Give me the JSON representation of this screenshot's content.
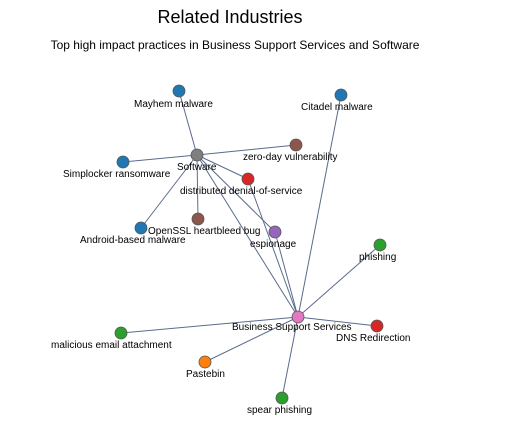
{
  "header": {
    "title": "Related Industries",
    "subtitle": "Top high impact practices in Business Support Services and Software"
  },
  "colors": {
    "edge": "#5a6b8c",
    "blue": "#1f77b4",
    "gray": "#7f7f7f",
    "brown": "#8c564b",
    "red": "#d62728",
    "purple": "#9467bd",
    "green": "#2ca02c",
    "pink": "#e377c2",
    "orange": "#ff7f0e"
  },
  "nodes": [
    {
      "id": "software",
      "label": "Software",
      "color": "gray"
    },
    {
      "id": "bss",
      "label": "Business Support Services",
      "color": "pink"
    },
    {
      "id": "mayhem",
      "label": "Mayhem malware",
      "color": "blue"
    },
    {
      "id": "citadel",
      "label": "Citadel malware",
      "color": "blue"
    },
    {
      "id": "simplocker",
      "label": "Simplocker ransomware",
      "color": "blue"
    },
    {
      "id": "zeroday",
      "label": "zero-day vulnerability",
      "color": "brown"
    },
    {
      "id": "ddos",
      "label": "distributed denial-of-service",
      "color": "red"
    },
    {
      "id": "openssl",
      "label": "OpenSSL heartbleed bug",
      "color": "brown"
    },
    {
      "id": "android",
      "label": "Android-based malware",
      "color": "blue"
    },
    {
      "id": "espionage",
      "label": "espionage",
      "color": "purple"
    },
    {
      "id": "phishing",
      "label": "phishing",
      "color": "green"
    },
    {
      "id": "malemail",
      "label": "malicious email attachment",
      "color": "green"
    },
    {
      "id": "dnsredir",
      "label": "DNS Redirection",
      "color": "red"
    },
    {
      "id": "pastebin",
      "label": "Pastebin",
      "color": "orange"
    },
    {
      "id": "spear",
      "label": "spear phishing",
      "color": "green"
    }
  ],
  "edges": [
    [
      "software",
      "mayhem"
    ],
    [
      "software",
      "simplocker"
    ],
    [
      "software",
      "zeroday"
    ],
    [
      "software",
      "ddos"
    ],
    [
      "software",
      "openssl"
    ],
    [
      "software",
      "android"
    ],
    [
      "software",
      "espionage"
    ],
    [
      "software",
      "bss"
    ],
    [
      "bss",
      "citadel"
    ],
    [
      "bss",
      "phishing"
    ],
    [
      "bss",
      "malemail"
    ],
    [
      "bss",
      "dnsredir"
    ],
    [
      "bss",
      "pastebin"
    ],
    [
      "bss",
      "spear"
    ],
    [
      "bss",
      "espionage"
    ],
    [
      "bss",
      "ddos"
    ]
  ]
}
